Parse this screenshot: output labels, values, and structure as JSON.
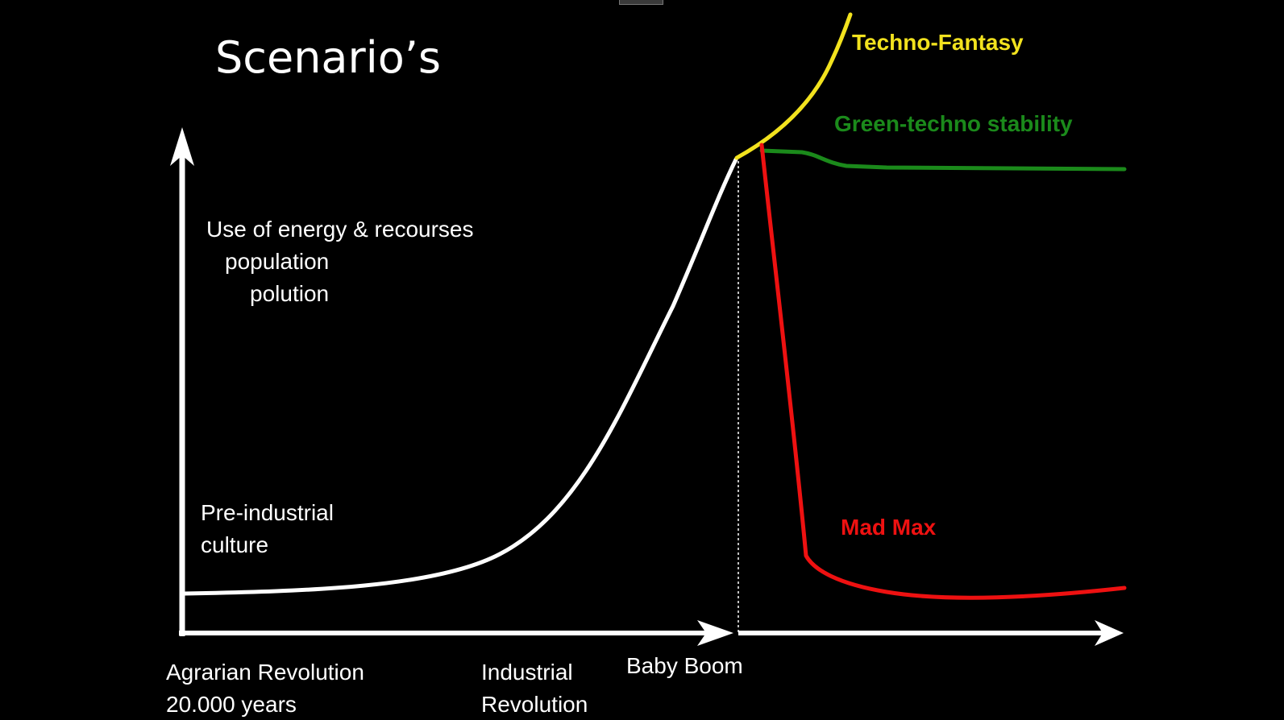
{
  "title": "Scenario’s",
  "y_axis_label": {
    "line1": "Use of energy & recourses",
    "line2": "population",
    "line3": "polution"
  },
  "annotations": {
    "pre_industrial_line1": "Pre-industrial",
    "pre_industrial_line2": "culture"
  },
  "x_axis_labels": {
    "agrarian_line1": "Agrarian Revolution",
    "agrarian_line2": "20.000 years",
    "industrial_line1": "Industrial",
    "industrial_line2": "Revolution",
    "baby_boom": "Baby Boom"
  },
  "scenarios": {
    "techno_fantasy": {
      "label": "Techno-Fantasy",
      "color": "#f2e21e"
    },
    "green_techno": {
      "label": "Green-techno stability",
      "color": "#1b8a1b"
    },
    "mad_max": {
      "label": "Mad Max",
      "color": "#ee1111"
    }
  },
  "colors": {
    "background": "#000000",
    "axes": "#ffffff",
    "history_curve": "#ffffff"
  }
}
